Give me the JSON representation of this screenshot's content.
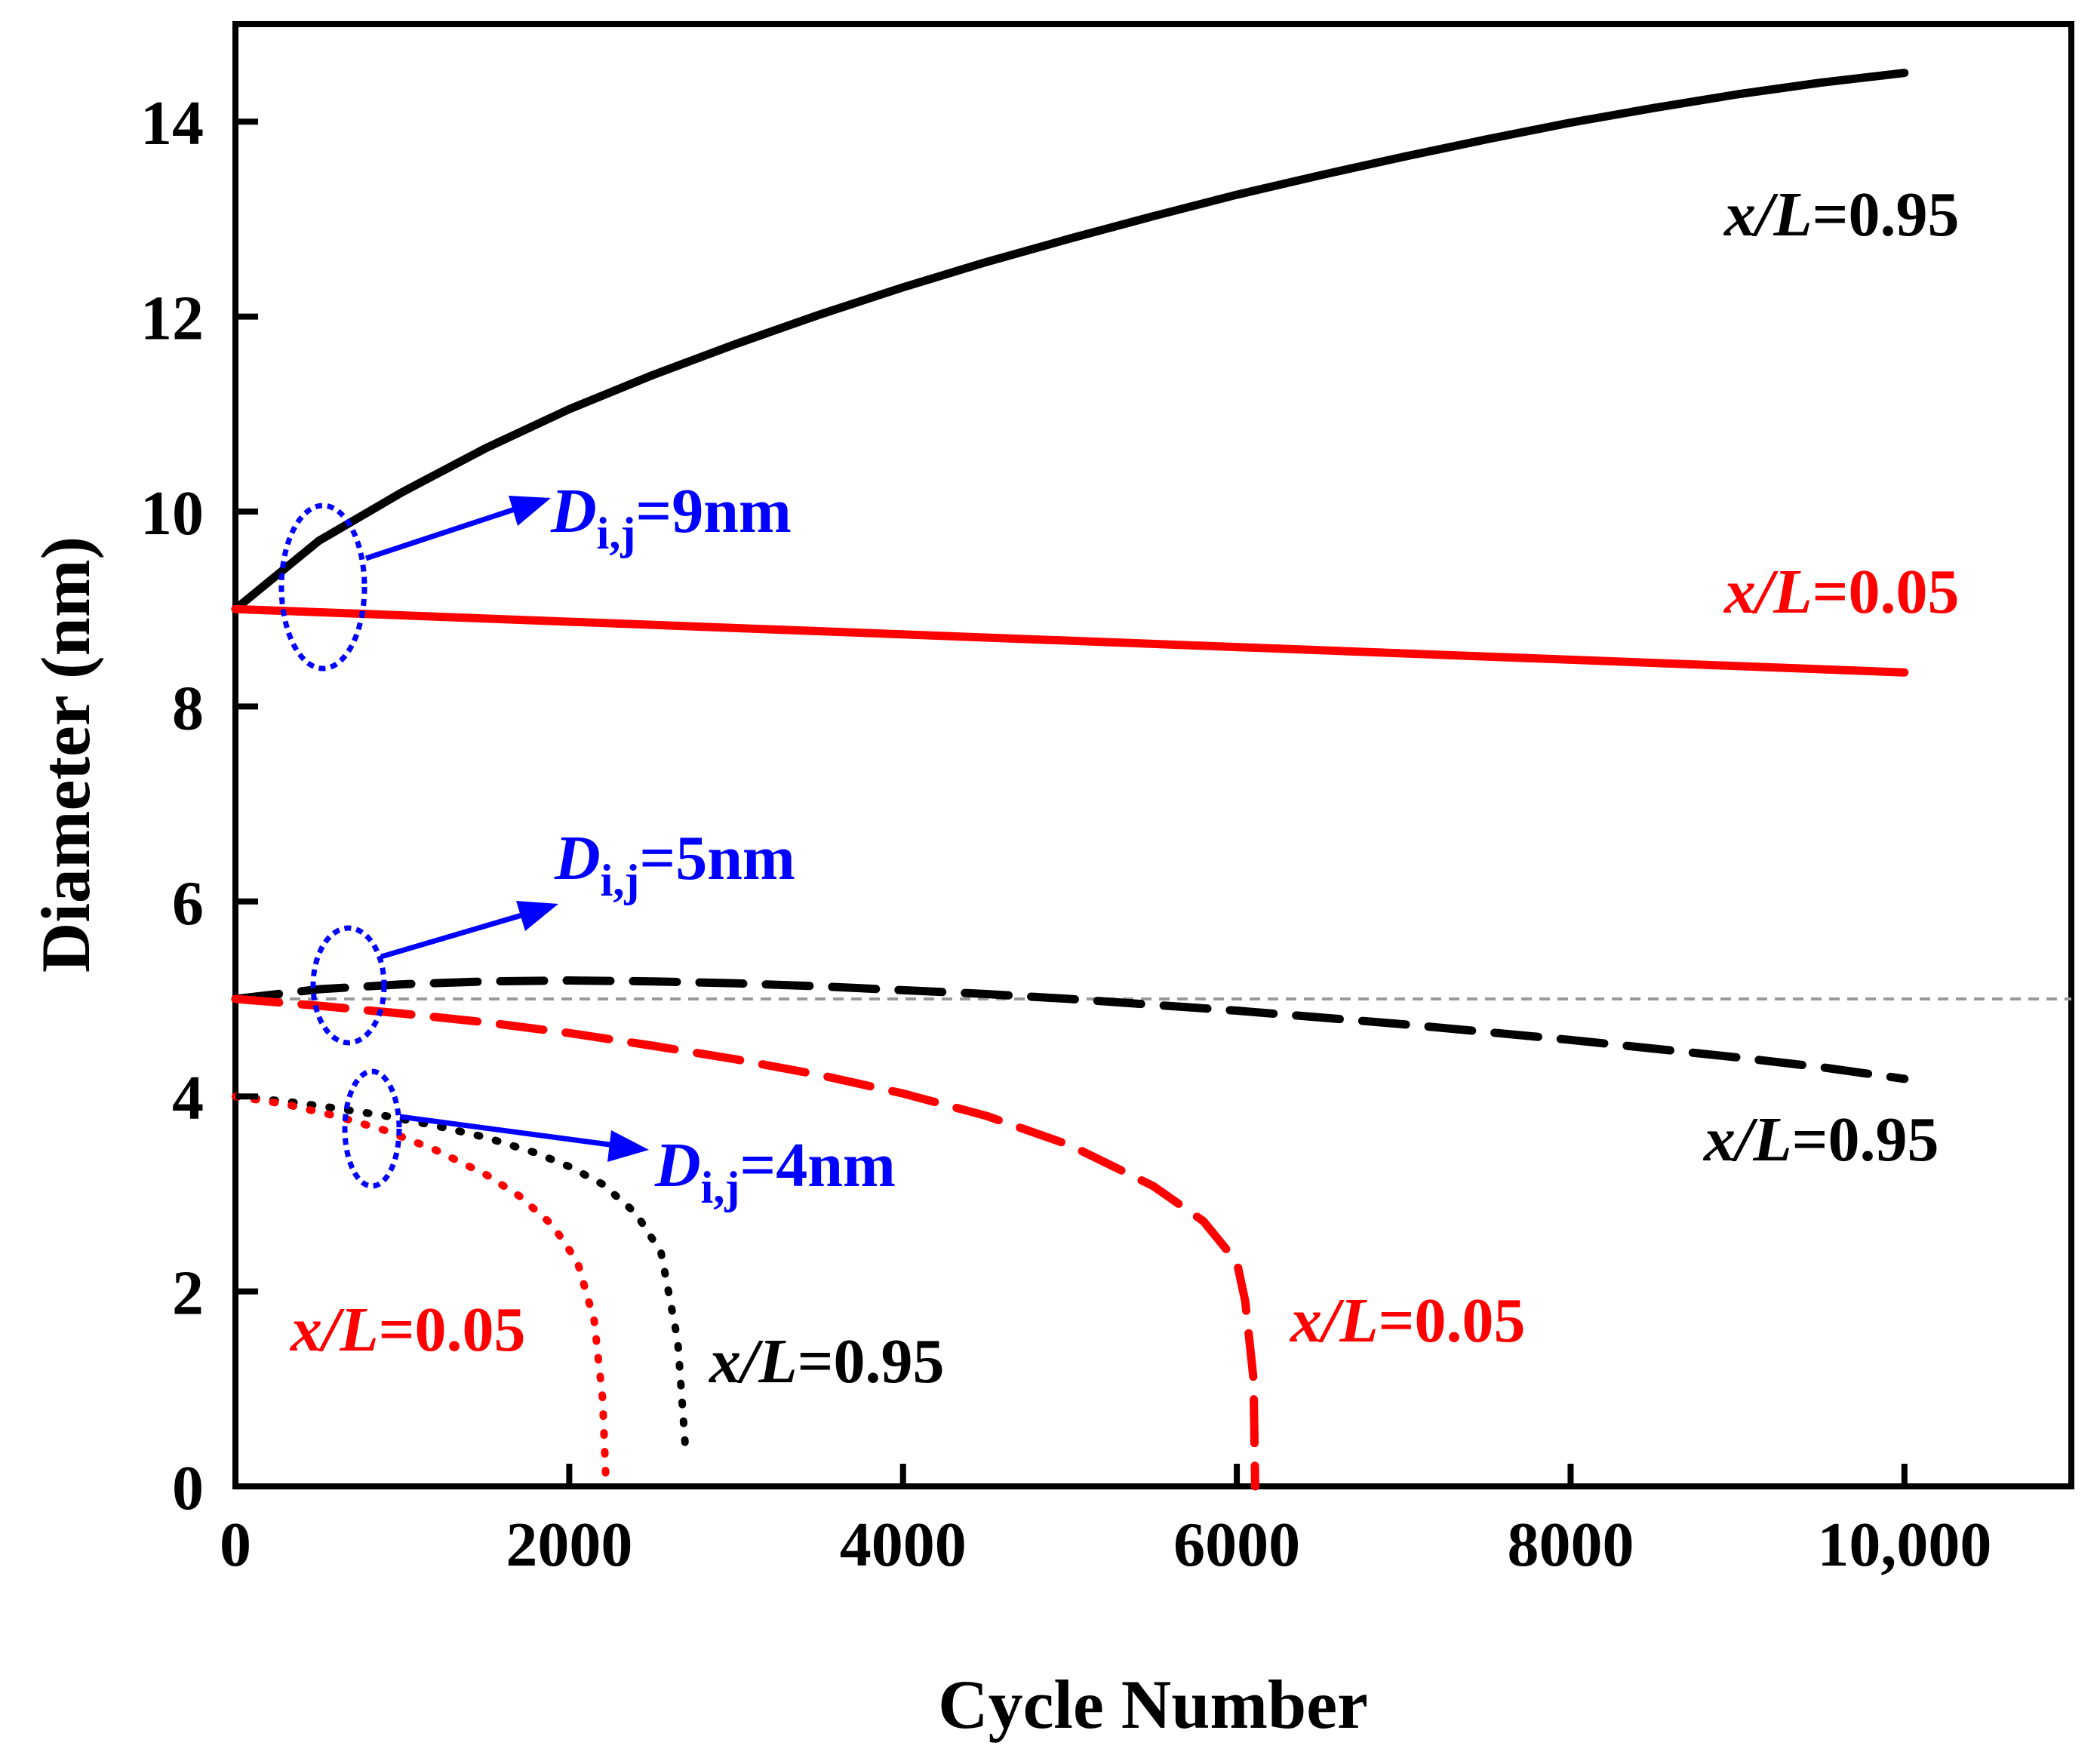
{
  "chart_data": {
    "type": "line",
    "title": "",
    "xlabel": "Cycle Number",
    "ylabel": "Diameter (nm)",
    "xlim": [
      0,
      11000
    ],
    "ylim": [
      0,
      15
    ],
    "xticks": [
      0,
      2000,
      4000,
      6000,
      8000,
      10000
    ],
    "xtick_labels": [
      "0",
      "2000",
      "4000",
      "6000",
      "8000",
      "10,000"
    ],
    "yticks": [
      0,
      2,
      4,
      6,
      8,
      10,
      12,
      14
    ],
    "ytick_labels": [
      "0",
      "2",
      "4",
      "6",
      "8",
      "10",
      "12",
      "14"
    ],
    "grid": false,
    "reference_line": {
      "y": 5,
      "style": "dashed",
      "color": "#999999"
    },
    "series": [
      {
        "name": "D=9nm, x/L=0.95",
        "color": "#000000",
        "style": "solid",
        "x": [
          0,
          500,
          1000,
          1500,
          2000,
          2500,
          3000,
          3500,
          4000,
          4500,
          5000,
          5500,
          6000,
          6500,
          7000,
          7500,
          8000,
          8500,
          9000,
          9500,
          10000
        ],
        "y": [
          9.0,
          9.7,
          10.2,
          10.65,
          11.05,
          11.4,
          11.72,
          12.02,
          12.3,
          12.56,
          12.8,
          13.03,
          13.25,
          13.45,
          13.64,
          13.82,
          13.99,
          14.14,
          14.28,
          14.4,
          14.5
        ]
      },
      {
        "name": "D=9nm, x/L=0.05",
        "color": "#ff0000",
        "style": "solid",
        "x": [
          0,
          10000
        ],
        "y": [
          9.0,
          8.35
        ]
      },
      {
        "name": "D=5nm, x/L=0.95",
        "color": "#000000",
        "style": "dashed",
        "x": [
          0,
          500,
          1000,
          1500,
          2000,
          2500,
          3000,
          3500,
          4000,
          4500,
          5000,
          5500,
          6000,
          6500,
          7000,
          7500,
          8000,
          8500,
          9000,
          9500,
          10000
        ],
        "y": [
          5.0,
          5.1,
          5.15,
          5.18,
          5.19,
          5.18,
          5.16,
          5.13,
          5.09,
          5.05,
          5.0,
          4.94,
          4.88,
          4.81,
          4.74,
          4.66,
          4.58,
          4.49,
          4.4,
          4.3,
          4.18
        ]
      },
      {
        "name": "D=5nm, x/L=0.05",
        "color": "#ff0000",
        "style": "dashed",
        "x": [
          0,
          500,
          1000,
          1500,
          2000,
          2500,
          3000,
          3500,
          4000,
          4500,
          5000,
          5500,
          5800,
          6000,
          6050,
          6100,
          6110
        ],
        "y": [
          5.0,
          4.93,
          4.85,
          4.76,
          4.65,
          4.52,
          4.38,
          4.22,
          4.03,
          3.8,
          3.5,
          3.08,
          2.72,
          2.3,
          1.9,
          1.1,
          0.0
        ]
      },
      {
        "name": "D=4nm, x/L=0.95",
        "color": "#000000",
        "style": "dotted",
        "x": [
          0,
          300,
          600,
          900,
          1200,
          1500,
          1800,
          2000,
          2200,
          2400,
          2550,
          2650,
          2700
        ],
        "y": [
          4.0,
          3.95,
          3.88,
          3.8,
          3.7,
          3.58,
          3.42,
          3.28,
          3.1,
          2.8,
          2.4,
          1.5,
          0.3
        ]
      },
      {
        "name": "D=4nm, x/L=0.05",
        "color": "#ff0000",
        "style": "dotted",
        "x": [
          0,
          300,
          600,
          900,
          1200,
          1500,
          1700,
          1900,
          2050,
          2150,
          2200,
          2220
        ],
        "y": [
          4.0,
          3.92,
          3.8,
          3.65,
          3.45,
          3.2,
          2.98,
          2.68,
          2.3,
          1.7,
          0.9,
          0.05
        ]
      }
    ]
  },
  "annotations": {
    "d9": {
      "label": "D",
      "subscript": "i,j",
      "value": "=9nm",
      "color": "#0000ff"
    },
    "d5": {
      "label": "D",
      "subscript": "i,j",
      "value": "=5nm",
      "color": "#0000ff"
    },
    "d4": {
      "label": "D",
      "subscript": "i,j",
      "value": "=4nm",
      "color": "#0000ff"
    },
    "labels": [
      {
        "id": "xl-095-top",
        "var": "x/L",
        "value": "=0.95",
        "color": "#000000"
      },
      {
        "id": "xl-005-top",
        "var": "x/L",
        "value": "=0.05",
        "color": "#ff0000"
      },
      {
        "id": "xl-095-mid",
        "var": "x/L",
        "value": "=0.95",
        "color": "#000000"
      },
      {
        "id": "xl-005-mid",
        "var": "x/L",
        "value": "=0.05",
        "color": "#ff0000"
      },
      {
        "id": "xl-005-low",
        "var": "x/L",
        "value": "=0.05",
        "color": "#ff0000"
      },
      {
        "id": "xl-095-low",
        "var": "x/L",
        "value": "=0.95",
        "color": "#000000"
      }
    ]
  }
}
